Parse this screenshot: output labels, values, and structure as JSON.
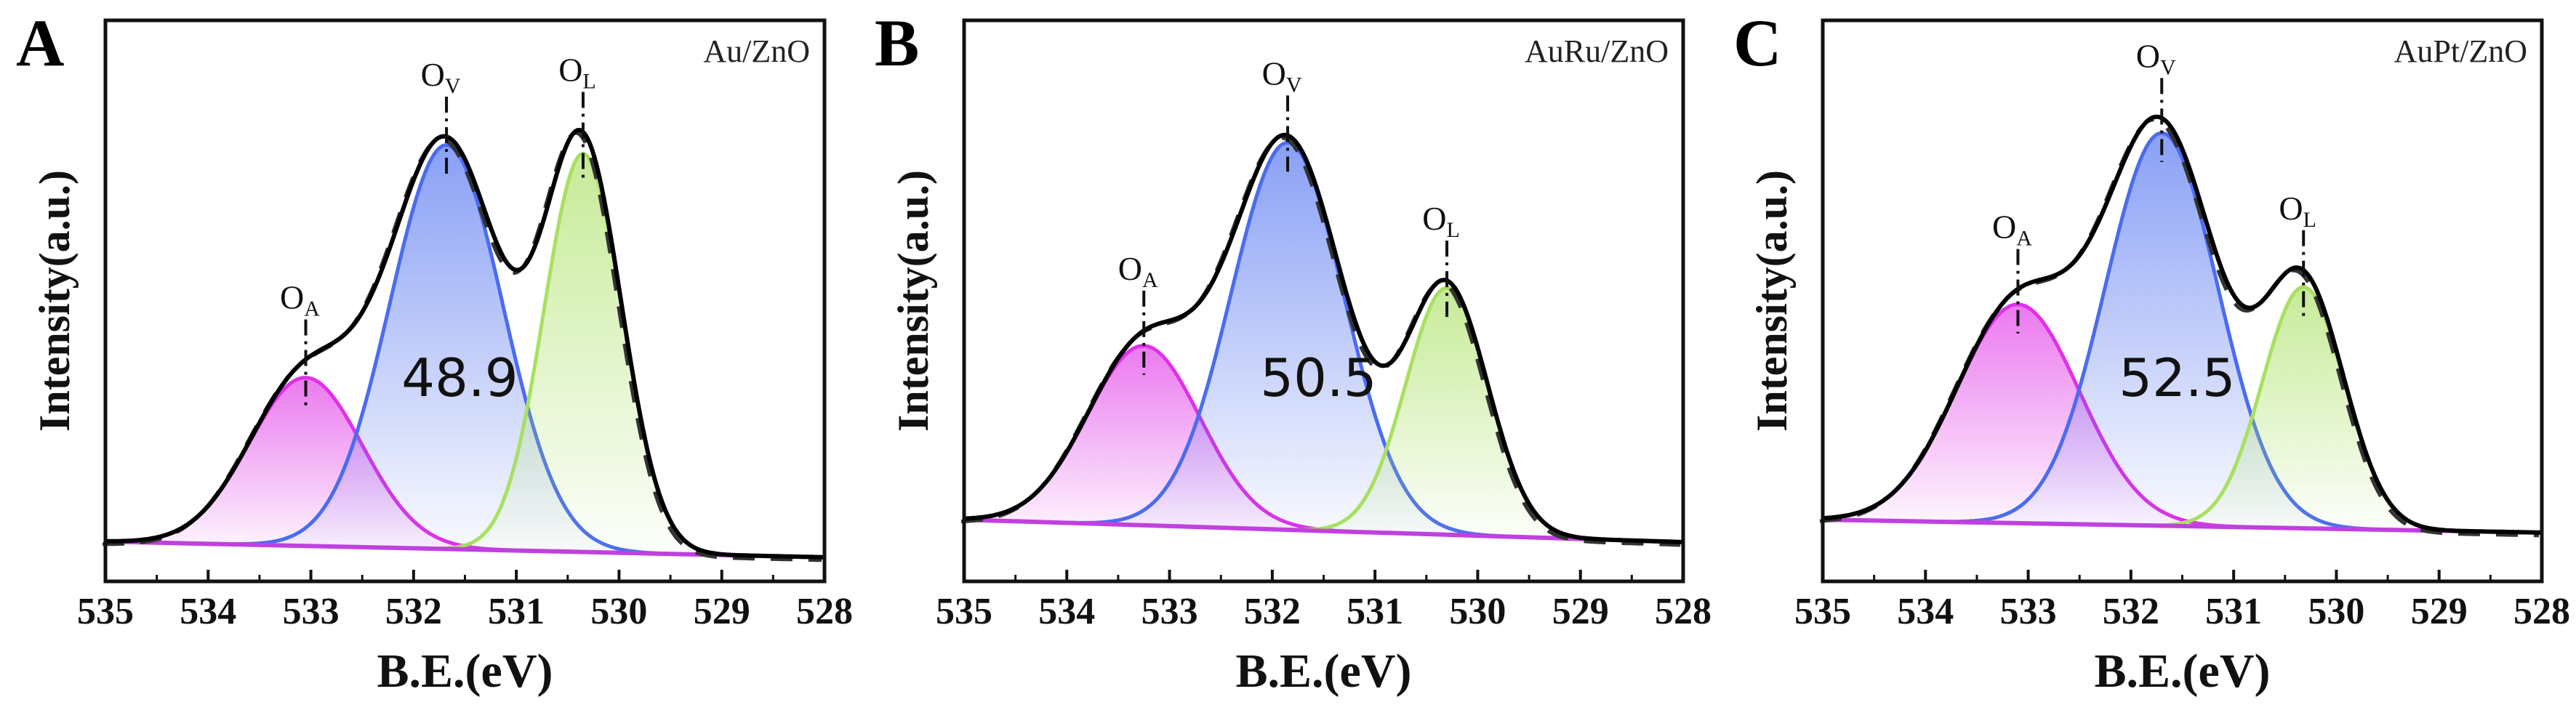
{
  "chart_data": [
    {
      "type": "line",
      "panel_letter": "A",
      "sample": "Au/ZnO",
      "xlabel": "B.E.(eV)",
      "ylabel": "Intensity(a.u.)",
      "xlim": [
        535,
        528
      ],
      "xticks": [
        "535",
        "534",
        "533",
        "532",
        "531",
        "530",
        "529",
        "528"
      ],
      "annotation": "48.9",
      "baseline": [
        7.1,
        4.3
      ],
      "peaks": [
        {
          "label": "O",
          "sub": "A",
          "center": 533.05,
          "amplitude": 30,
          "sigma": 0.55,
          "color": "#e030e8"
        },
        {
          "label": "O",
          "sub": "V",
          "center": 531.68,
          "amplitude": 72,
          "sigma": 0.55,
          "color": "#4a6cf0"
        },
        {
          "label": "O",
          "sub": "L",
          "center": 530.35,
          "amplitude": 71,
          "sigma": 0.38,
          "color": "#a8e060"
        }
      ]
    },
    {
      "type": "line",
      "panel_letter": "B",
      "sample": "AuRu/ZnO",
      "xlabel": "B.E.(eV)",
      "ylabel": "Intensity(a.u.)",
      "xlim": [
        535,
        528
      ],
      "xticks": [
        "535",
        "534",
        "533",
        "532",
        "531",
        "530",
        "529",
        "528"
      ],
      "annotation": "50.5",
      "baseline": [
        11,
        7
      ],
      "peaks": [
        {
          "label": "O",
          "sub": "A",
          "center": 533.25,
          "amplitude": 32,
          "sigma": 0.55,
          "color": "#e030e8"
        },
        {
          "label": "O",
          "sub": "V",
          "center": 531.85,
          "amplitude": 69,
          "sigma": 0.55,
          "color": "#4a6cf0"
        },
        {
          "label": "O",
          "sub": "L",
          "center": 530.3,
          "amplitude": 44,
          "sigma": 0.4,
          "color": "#a8e060"
        }
      ]
    },
    {
      "type": "line",
      "panel_letter": "C",
      "sample": "AuPt/ZnO",
      "xlabel": "B.E.(eV)",
      "ylabel": "Intensity(a.u.)",
      "xlim": [
        535,
        528
      ],
      "xticks": [
        "535",
        "534",
        "533",
        "532",
        "531",
        "530",
        "529",
        "528"
      ],
      "annotation": "52.5",
      "baseline": [
        11,
        8.7
      ],
      "peaks": [
        {
          "label": "O",
          "sub": "A",
          "center": 533.1,
          "amplitude": 39,
          "sigma": 0.6,
          "color": "#e030e8"
        },
        {
          "label": "O",
          "sub": "V",
          "center": 531.7,
          "amplitude": 70,
          "sigma": 0.55,
          "color": "#4a6cf0"
        },
        {
          "label": "O",
          "sub": "L",
          "center": 530.32,
          "amplitude": 43,
          "sigma": 0.4,
          "color": "#a8e060"
        }
      ]
    }
  ]
}
